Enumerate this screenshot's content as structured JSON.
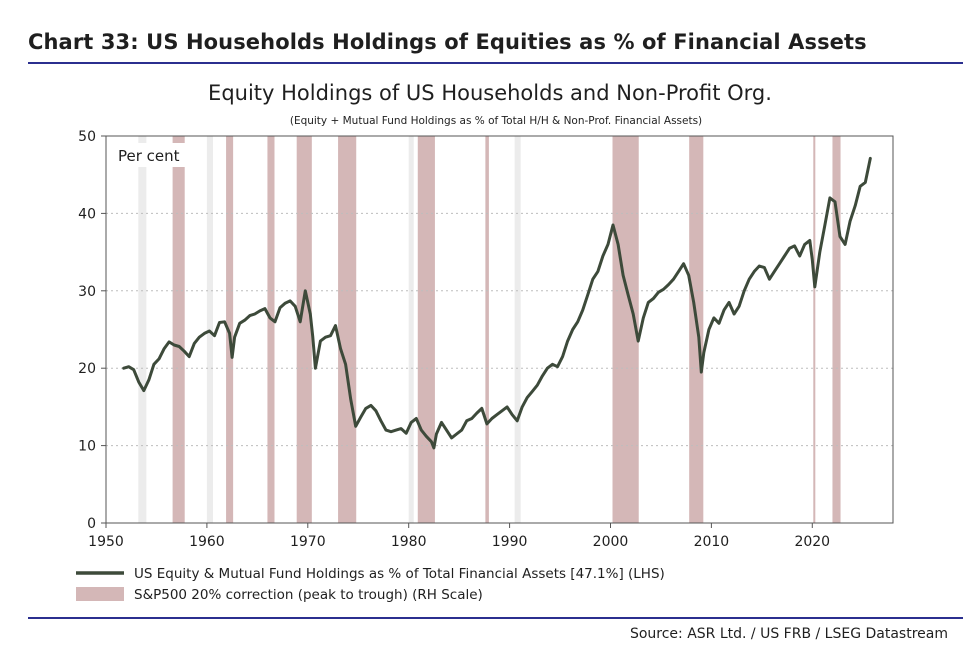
{
  "header": {
    "title": "Chart 33: US Households Holdings of Equities as % of Financial Assets"
  },
  "footer": {
    "source": "Source: ASR Ltd. / US FRB / LSEG Datastream"
  },
  "colors": {
    "line": "#3d4a3a",
    "correction_shade": "#d4b7b7",
    "light_shade": "#ececec",
    "rule": "#2b2f8f",
    "grid": "#bdbdbd"
  },
  "chart_data": {
    "type": "line",
    "title": "Equity Holdings of US Households and Non-Profit Org.",
    "subtitle": "(Equity + Mutual Fund Holdings as % of Total H/H & Non-Prof. Financial Assets)",
    "y_unit_label": "Per cent",
    "xlim": [
      1950,
      2028
    ],
    "ylim": [
      0,
      50
    ],
    "x_ticks": [
      "1950",
      "1960",
      "1970",
      "1980",
      "1990",
      "2000",
      "2010",
      "2020"
    ],
    "y_ticks": [
      "0",
      "10",
      "20",
      "30",
      "40",
      "50"
    ],
    "grid": "horizontal dotted",
    "legend": {
      "placement": "bottom",
      "entries": [
        {
          "label": "US Equity & Mutual Fund Holdings as % of Total Financial Assets  [47.1%] (LHS)",
          "style": "line"
        },
        {
          "label": "S&P500 20% correction (peak to trough) (RH Scale)",
          "style": "shade"
        }
      ]
    },
    "series": [
      {
        "name": "US Equity & Mutual Fund Holdings as % of Total Financial Assets",
        "x": [
          1951.75,
          1952.25,
          1952.75,
          1953.25,
          1953.75,
          1954.25,
          1954.75,
          1955.25,
          1955.75,
          1956.25,
          1956.75,
          1957.25,
          1957.75,
          1958.25,
          1958.75,
          1959.25,
          1959.75,
          1960.25,
          1960.75,
          1961.25,
          1961.75,
          1962.25,
          1962.5,
          1962.75,
          1963.25,
          1963.75,
          1964.25,
          1964.75,
          1965.25,
          1965.75,
          1966.25,
          1966.75,
          1967.25,
          1967.75,
          1968.25,
          1968.75,
          1969.25,
          1969.75,
          1970.25,
          1970.5,
          1970.75,
          1971.25,
          1971.75,
          1972.25,
          1972.75,
          1973.25,
          1973.75,
          1974.25,
          1974.75,
          1975.25,
          1975.75,
          1976.25,
          1976.75,
          1977.25,
          1977.75,
          1978.25,
          1978.75,
          1979.25,
          1979.75,
          1980.25,
          1980.75,
          1981.25,
          1981.75,
          1982.25,
          1982.5,
          1982.75,
          1983.25,
          1983.75,
          1984.25,
          1984.75,
          1985.25,
          1985.75,
          1986.25,
          1986.75,
          1987.25,
          1987.75,
          1988.25,
          1988.75,
          1989.25,
          1989.75,
          1990.25,
          1990.75,
          1991.25,
          1991.75,
          1992.25,
          1992.75,
          1993.25,
          1993.75,
          1994.25,
          1994.75,
          1995.25,
          1995.75,
          1996.25,
          1996.75,
          1997.25,
          1997.75,
          1998.25,
          1998.75,
          1999.25,
          1999.75,
          2000.25,
          2000.75,
          2001.25,
          2001.75,
          2002.25,
          2002.75,
          2003.25,
          2003.75,
          2004.25,
          2004.75,
          2005.25,
          2005.75,
          2006.25,
          2006.75,
          2007.25,
          2007.75,
          2008.25,
          2008.75,
          2009.0,
          2009.25,
          2009.75,
          2010.25,
          2010.75,
          2011.25,
          2011.75,
          2012.25,
          2012.75,
          2013.25,
          2013.75,
          2014.25,
          2014.75,
          2015.25,
          2015.75,
          2016.25,
          2016.75,
          2017.25,
          2017.75,
          2018.25,
          2018.75,
          2019.25,
          2019.75,
          2020.0,
          2020.25,
          2020.75,
          2021.25,
          2021.75,
          2022.25,
          2022.75,
          2023.25,
          2023.75,
          2024.25,
          2024.75,
          2025.25,
          2025.75
        ],
        "values": [
          20.0,
          20.2,
          19.8,
          18.2,
          17.1,
          18.5,
          20.5,
          21.2,
          22.5,
          23.4,
          23.0,
          22.8,
          22.2,
          21.5,
          23.2,
          24.0,
          24.5,
          24.8,
          24.2,
          25.9,
          26.0,
          24.5,
          21.4,
          24.0,
          25.8,
          26.2,
          26.8,
          27.0,
          27.4,
          27.7,
          26.5,
          26.0,
          27.8,
          28.4,
          28.7,
          28.0,
          26.0,
          30.0,
          27.0,
          24.0,
          20.0,
          23.5,
          24.0,
          24.2,
          25.5,
          22.5,
          20.5,
          16.0,
          12.5,
          13.7,
          14.8,
          15.2,
          14.5,
          13.2,
          12.0,
          11.8,
          12.0,
          12.2,
          11.6,
          13.0,
          13.5,
          12.0,
          11.2,
          10.5,
          9.7,
          11.5,
          13.0,
          12.0,
          11.0,
          11.5,
          12.0,
          13.2,
          13.5,
          14.2,
          14.8,
          12.8,
          13.5,
          14.0,
          14.5,
          15.0,
          14.0,
          13.2,
          15.0,
          16.2,
          17.0,
          17.8,
          19.0,
          20.0,
          20.5,
          20.2,
          21.5,
          23.5,
          25.0,
          26.0,
          27.5,
          29.5,
          31.5,
          32.5,
          34.5,
          36.0,
          38.5,
          36.0,
          32.0,
          29.5,
          27.0,
          23.5,
          26.5,
          28.5,
          29.0,
          29.8,
          30.2,
          30.8,
          31.5,
          32.5,
          33.5,
          32.0,
          28.5,
          24.0,
          19.5,
          22.0,
          25.0,
          26.5,
          25.8,
          27.5,
          28.5,
          27.0,
          28.0,
          30.0,
          31.5,
          32.5,
          33.2,
          33.0,
          31.5,
          32.5,
          33.5,
          34.5,
          35.5,
          35.8,
          34.5,
          36.0,
          36.5,
          34.0,
          30.5,
          35.0,
          38.5,
          42.0,
          41.5,
          37.0,
          36.0,
          39.0,
          41.0,
          43.5,
          44.0,
          47.1
        ]
      }
    ],
    "correction_periods": [
      {
        "start": 1956.6,
        "end": 1957.8
      },
      {
        "start": 1961.9,
        "end": 1962.6
      },
      {
        "start": 1966.0,
        "end": 1966.7
      },
      {
        "start": 1968.9,
        "end": 1970.4
      },
      {
        "start": 1973.0,
        "end": 1974.8
      },
      {
        "start": 1980.9,
        "end": 1982.6
      },
      {
        "start": 1987.6,
        "end": 1987.95
      },
      {
        "start": 2000.2,
        "end": 2002.8
      },
      {
        "start": 2007.8,
        "end": 2009.2
      },
      {
        "start": 2020.1,
        "end": 2020.3
      },
      {
        "start": 2022.0,
        "end": 2022.8
      }
    ],
    "light_periods": [
      {
        "start": 1953.2,
        "end": 1954.0
      },
      {
        "start": 1960.0,
        "end": 1960.6
      },
      {
        "start": 1980.0,
        "end": 1980.5
      },
      {
        "start": 1990.5,
        "end": 1991.1
      }
    ]
  }
}
